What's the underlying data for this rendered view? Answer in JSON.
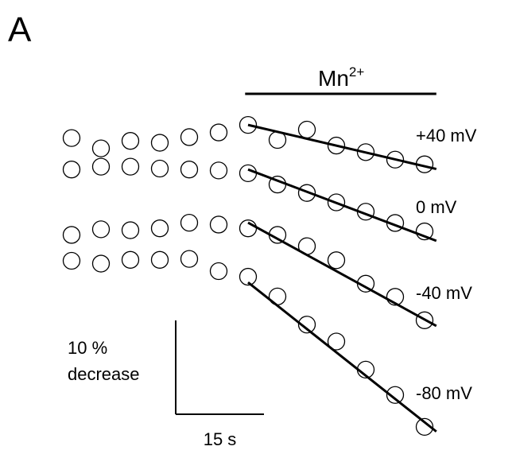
{
  "chart_data": {
    "type": "scatter",
    "panel_label": "A",
    "annotation": {
      "text": "Mn",
      "superscript": "2+",
      "xlim": [
        29.5,
        62
      ]
    },
    "x": [
      0,
      5,
      10,
      15,
      20,
      25,
      30,
      35,
      40,
      45,
      50,
      55,
      60
    ],
    "fit_x": [
      30,
      62
    ],
    "color": "#000000",
    "series": [
      {
        "name": "+40 mV",
        "values": [
          100.2,
          99.1,
          99.9,
          99.7,
          100.3,
          100.8,
          101.6,
          100,
          101.1,
          99.4,
          98.7,
          97.9,
          97.4
        ],
        "fit_y": [
          101.6,
          96.9
        ]
      },
      {
        "name": "0 mV",
        "values": [
          99.9,
          100.2,
          100.2,
          100,
          99.9,
          99.8,
          99.5,
          98.3,
          97.4,
          96.4,
          95.4,
          94.2,
          93.3
        ],
        "fit_y": [
          99.9,
          92.3
        ]
      },
      {
        "name": "-40 mV",
        "values": [
          99.2,
          99.8,
          99.7,
          99.9,
          100.5,
          100.3,
          99.9,
          99.2,
          98.0,
          96.5,
          94.0,
          92.6,
          90.1
        ],
        "fit_y": [
          100.5,
          89.5
        ]
      },
      {
        "name": "-80 mV",
        "values": [
          100,
          99.7,
          100.1,
          100.1,
          100.2,
          98.9,
          98.3,
          96.2,
          93.2,
          91.4,
          88.4,
          85.7,
          82.3
        ],
        "fit_y": [
          97.7,
          81.8
        ]
      }
    ],
    "scale_bar": {
      "x": {
        "value": 15,
        "label": "15 s"
      },
      "y": {
        "value": 10,
        "label": "10 %"
      },
      "y_caption": "decrease"
    }
  }
}
